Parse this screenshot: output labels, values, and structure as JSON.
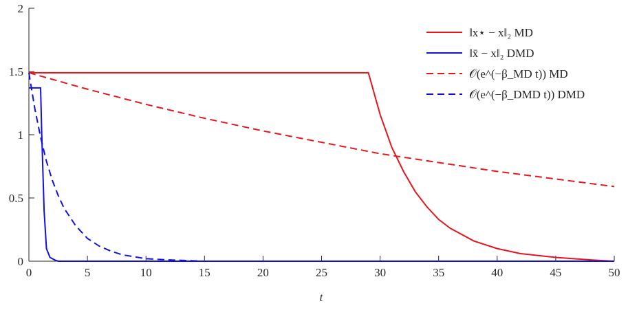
{
  "chart_data": {
    "type": "line",
    "xlabel": "t",
    "xlim": [
      0,
      50
    ],
    "xticks": [
      0,
      5,
      10,
      15,
      20,
      25,
      30,
      35,
      40,
      45,
      50
    ],
    "ylim": [
      0,
      2
    ],
    "yticks": [
      0,
      0.5,
      1,
      1.5,
      2
    ],
    "legend": "upper right",
    "series": [
      {
        "name": "‖x⋆ − x‖₂ MD",
        "color": "#e8141c",
        "dashed": false,
        "x": [
          0,
          29,
          30,
          31,
          32,
          33,
          34,
          35,
          36,
          38,
          40,
          42,
          45,
          48,
          50
        ],
        "values": [
          1.49,
          1.49,
          1.16,
          0.9,
          0.71,
          0.55,
          0.43,
          0.33,
          0.26,
          0.16,
          0.1,
          0.06,
          0.03,
          0.01,
          0
        ]
      },
      {
        "name": "‖x̄ − x‖₂ DMD",
        "color": "#1010e0",
        "dashed": false,
        "x": [
          0,
          1,
          1.1,
          1.3,
          1.5,
          1.8,
          2.2,
          2.5,
          50
        ],
        "values": [
          1.37,
          1.37,
          1.0,
          0.4,
          0.1,
          0.03,
          0.01,
          0,
          0
        ]
      },
      {
        "name": "𝒪(e^(−β_MD t)) MD",
        "color": "#e8141c",
        "dashed": true,
        "x": [
          0,
          5,
          10,
          15,
          20,
          25,
          30,
          35,
          40,
          45,
          50
        ],
        "values": [
          1.49,
          1.36,
          1.24,
          1.13,
          1.03,
          0.94,
          0.85,
          0.78,
          0.71,
          0.65,
          0.59
        ]
      },
      {
        "name": "𝒪(e^(−β_DMD t)) DMD",
        "color": "#1010e0",
        "dashed": true,
        "x": [
          0,
          0.5,
          1,
          1.5,
          2,
          2.5,
          3,
          4,
          5,
          6,
          7,
          8,
          10,
          12,
          15,
          20,
          50
        ],
        "values": [
          1.49,
          1.21,
          0.98,
          0.79,
          0.64,
          0.52,
          0.42,
          0.28,
          0.18,
          0.12,
          0.08,
          0.05,
          0.02,
          0.01,
          0,
          0,
          0
        ]
      }
    ]
  }
}
